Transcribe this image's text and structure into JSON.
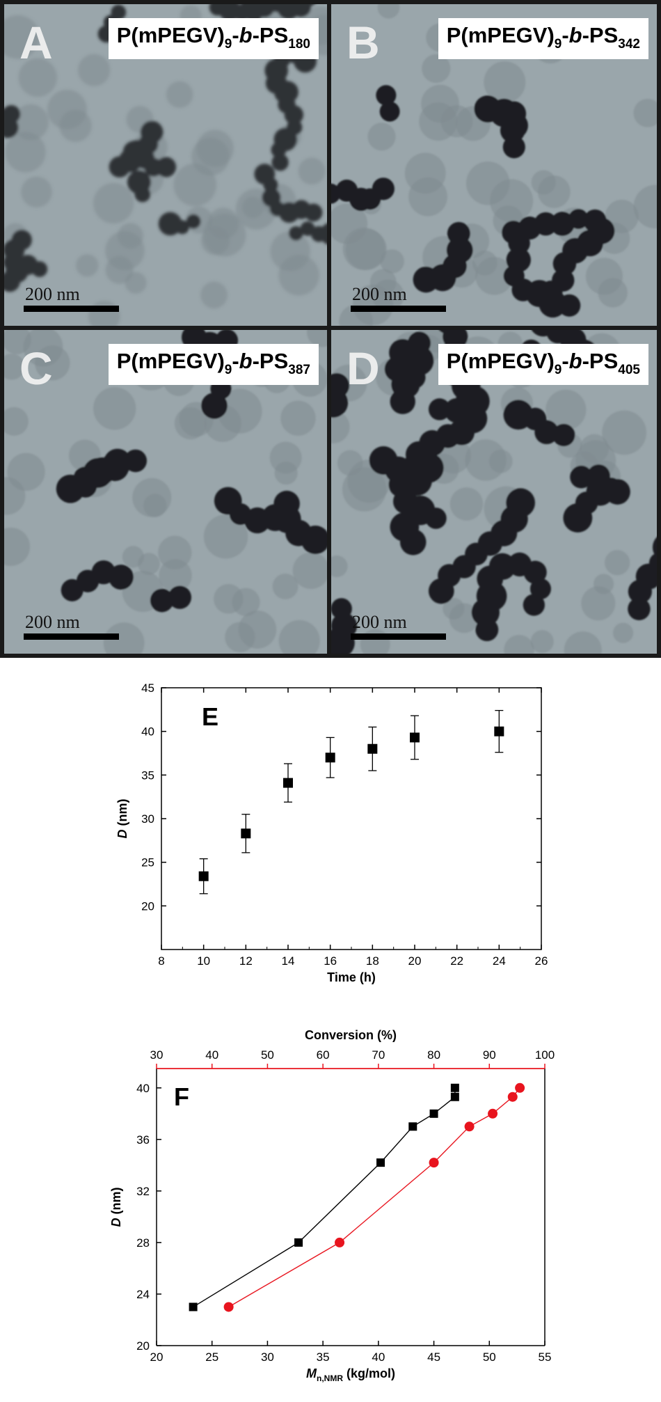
{
  "tem_panels": [
    {
      "letter": "A",
      "label_prefix": "P(mPEGV)",
      "label_sub1": "9",
      "label_mid": "-",
      "label_italic": "b",
      "label_suffix": "-PS",
      "label_sub2": "180",
      "scale": "200 nm"
    },
    {
      "letter": "B",
      "label_prefix": "P(mPEGV)",
      "label_sub1": "9",
      "label_mid": "-",
      "label_italic": "b",
      "label_suffix": "-PS",
      "label_sub2": "342",
      "scale": "200 nm"
    },
    {
      "letter": "C",
      "label_prefix": "P(mPEGV)",
      "label_sub1": "9",
      "label_mid": "-",
      "label_italic": "b",
      "label_suffix": "-PS",
      "label_sub2": "387",
      "scale": "200 nm"
    },
    {
      "letter": "D",
      "label_prefix": "P(mPEGV)",
      "label_sub1": "9",
      "label_mid": "-",
      "label_italic": "b",
      "label_suffix": "-PS",
      "label_sub2": "405",
      "scale": "200 nm"
    }
  ],
  "chart_data": [
    {
      "type": "scatter",
      "panel": "E",
      "xlabel": "Time (h)",
      "ylabel": "D (nm)",
      "xlim": [
        8,
        26
      ],
      "ylim": [
        15,
        45
      ],
      "xticks": [
        8,
        10,
        12,
        14,
        16,
        18,
        20,
        22,
        24,
        26
      ],
      "yticks": [
        20,
        25,
        30,
        35,
        40,
        45
      ],
      "series": [
        {
          "marker": "square",
          "color": "#000000",
          "x": [
            10,
            12,
            14,
            16,
            18,
            20,
            24
          ],
          "y": [
            23.4,
            28.3,
            34.1,
            37.0,
            38.0,
            39.3,
            40.0
          ],
          "error": [
            2.0,
            2.2,
            2.2,
            2.3,
            2.5,
            2.5,
            2.4
          ]
        }
      ]
    },
    {
      "type": "line",
      "panel": "F",
      "xlabel": "M",
      "xlabel_sub": "n,NMR",
      "xlabel_unit": " (kg/mol)",
      "ylabel": "D (nm)",
      "x2label": "Conversion (%)",
      "x2color": "#e8141e",
      "xlim": [
        20,
        55
      ],
      "x2lim": [
        30,
        100
      ],
      "ylim": [
        20,
        41.5
      ],
      "xticks": [
        20,
        25,
        30,
        35,
        40,
        45,
        50,
        55
      ],
      "x2ticks": [
        30,
        40,
        50,
        60,
        70,
        80,
        90,
        100
      ],
      "yticks": [
        20,
        24,
        28,
        32,
        36,
        40
      ],
      "series": [
        {
          "axis": "bottom",
          "marker": "square",
          "color": "#000000",
          "x": [
            23.3,
            32.8,
            40.2,
            43.1,
            45.0,
            46.9,
            46.9
          ],
          "y": [
            23.0,
            28.0,
            34.2,
            37.0,
            38.0,
            39.3,
            40.0
          ]
        },
        {
          "axis": "top",
          "marker": "circle",
          "color": "#e8141e",
          "x": [
            43.0,
            63.0,
            80.0,
            86.4,
            90.6,
            94.2,
            95.5
          ],
          "y": [
            23.0,
            28.0,
            34.2,
            37.0,
            38.0,
            39.3,
            40.0
          ]
        }
      ]
    }
  ]
}
